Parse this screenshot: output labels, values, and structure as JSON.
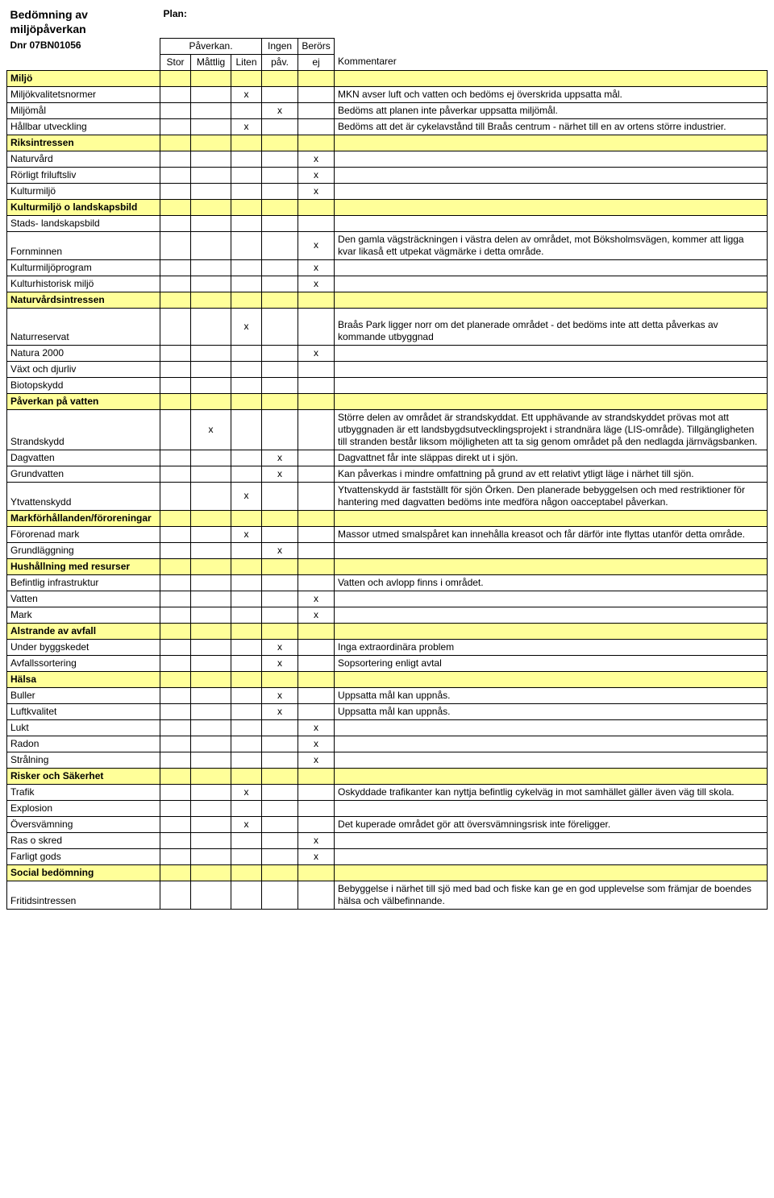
{
  "doc_title": "Bedömning av miljöpåverkan",
  "plan_label": "Plan:",
  "dnr": "Dnr 07BN01056",
  "second_header": {
    "paverkan": "Påverkan.",
    "ingen": "Ingen",
    "berors": "Berörs"
  },
  "headers": {
    "stor": "Stor",
    "mattlig": "Måttlig",
    "liten": "Liten",
    "pav": "påv.",
    "ej": "ej",
    "kommentarer": "Kommentarer"
  },
  "sections": [
    {
      "label": "Miljö",
      "rows": [
        {
          "label": "Miljökvalitetsnormer",
          "marks": [
            "",
            "",
            "x",
            "",
            ""
          ],
          "comment": "MKN avser luft och vatten och bedöms ej överskrida uppsatta mål."
        },
        {
          "label": "Miljömål",
          "marks": [
            "",
            "",
            "",
            "x",
            ""
          ],
          "comment": "Bedöms att planen inte påverkar uppsatta miljömål."
        },
        {
          "label": "Hållbar utveckling",
          "marks": [
            "",
            "",
            "x",
            "",
            ""
          ],
          "comment": "Bedöms att det är cykelavstånd till Braås centrum - närhet till en av ortens större industrier."
        }
      ]
    },
    {
      "label": "Riksintressen",
      "rows": [
        {
          "label": "Naturvård",
          "marks": [
            "",
            "",
            "",
            "",
            "x"
          ],
          "comment": ""
        },
        {
          "label": "Rörligt friluftsliv",
          "marks": [
            "",
            "",
            "",
            "",
            "x"
          ],
          "comment": ""
        },
        {
          "label": "Kulturmiljö",
          "marks": [
            "",
            "",
            "",
            "",
            "x"
          ],
          "comment": ""
        }
      ]
    },
    {
      "label": "Kulturmiljö o landskapsbild",
      "rows": [
        {
          "label": "Stads- landskapsbild",
          "marks": [
            "",
            "",
            "",
            "",
            ""
          ],
          "comment": ""
        },
        {
          "label": "Fornminnen",
          "marks": [
            "",
            "",
            "",
            "",
            "x"
          ],
          "comment": "Den gamla vägsträckningen i västra delen av området, mot Böksholmsvägen, kommer att ligga kvar likaså ett utpekat vägmärke i detta område."
        },
        {
          "label": "Kulturmiljöprogram",
          "marks": [
            "",
            "",
            "",
            "",
            "x"
          ],
          "comment": ""
        },
        {
          "label": "Kulturhistorisk miljö",
          "marks": [
            "",
            "",
            "",
            "",
            "x"
          ],
          "comment": ""
        }
      ]
    },
    {
      "label": "Naturvårdsintressen",
      "rows": [
        {
          "label": "Naturreservat",
          "marks": [
            "",
            "",
            "x",
            "",
            ""
          ],
          "comment": "Braås Park ligger norr om det planerade området - det bedöms inte att detta påverkas av kommande utbyggnad",
          "tall": true
        },
        {
          "label": "Natura 2000",
          "marks": [
            "",
            "",
            "",
            "",
            "x"
          ],
          "comment": ""
        },
        {
          "label": "Växt och djurliv",
          "marks": [
            "",
            "",
            "",
            "",
            ""
          ],
          "comment": ""
        },
        {
          "label": "Biotopskydd",
          "marks": [
            "",
            "",
            "",
            "",
            ""
          ],
          "comment": ""
        }
      ]
    },
    {
      "label": "Påverkan på vatten",
      "rows": [
        {
          "label": "Strandskydd",
          "marks": [
            "",
            "x",
            "",
            "",
            ""
          ],
          "comment": "Större delen av området är strandskyddat.               Ett upphävande av strandskyddet prövas mot att utbyggnaden är ett landsbygdsutvecklingsprojekt i strandnära läge (LIS-område). Tillgängligheten till stranden består liksom möjligheten att ta sig genom området på den nedlagda järnvägsbanken."
        },
        {
          "label": "Dagvatten",
          "marks": [
            "",
            "",
            "",
            "x",
            ""
          ],
          "comment": "Dagvattnet får inte släppas direkt ut i sjön."
        },
        {
          "label": "Grundvatten",
          "marks": [
            "",
            "",
            "",
            "x",
            ""
          ],
          "comment": "Kan påverkas i mindre omfattning på grund av ett relativt ytligt läge i närhet till sjön."
        },
        {
          "label": "Ytvattenskydd",
          "marks": [
            "",
            "",
            "x",
            "",
            ""
          ],
          "comment": "Ytvattenskydd är fastställt för sjön Örken. Den planerade bebyggelsen och med restriktioner för hantering med dagvatten bedöms inte medföra någon oacceptabel påverkan."
        }
      ]
    },
    {
      "label": "Markförhållanden/föroreningar",
      "rows": [
        {
          "label": "Förorenad mark",
          "marks": [
            "",
            "",
            "x",
            "",
            ""
          ],
          "comment": "Massor utmed smalspåret kan innehålla kreasot och får därför inte flyttas utanför detta område."
        },
        {
          "label": "Grundläggning",
          "marks": [
            "",
            "",
            "",
            "x",
            ""
          ],
          "comment": ""
        }
      ]
    },
    {
      "label": "Hushållning med resurser",
      "rows": [
        {
          "label": "Befintlig infrastruktur",
          "marks": [
            "",
            "",
            "",
            "",
            ""
          ],
          "comment": "Vatten och avlopp finns i området."
        },
        {
          "label": "Vatten",
          "marks": [
            "",
            "",
            "",
            "",
            "x"
          ],
          "comment": ""
        },
        {
          "label": "Mark",
          "marks": [
            "",
            "",
            "",
            "",
            "x"
          ],
          "comment": ""
        }
      ]
    },
    {
      "label": "Alstrande av avfall",
      "rows": [
        {
          "label": "Under byggskedet",
          "marks": [
            "",
            "",
            "",
            "x",
            ""
          ],
          "comment": "Inga extraordinära problem"
        },
        {
          "label": "Avfallssortering",
          "marks": [
            "",
            "",
            "",
            "x",
            ""
          ],
          "comment": "Sopsortering enligt avtal"
        }
      ]
    },
    {
      "label": "Hälsa",
      "rows": [
        {
          "label": "Buller",
          "marks": [
            "",
            "",
            "",
            "x",
            ""
          ],
          "comment": "Uppsatta mål kan uppnås."
        },
        {
          "label": "Luftkvalitet",
          "marks": [
            "",
            "",
            "",
            "x",
            ""
          ],
          "comment": "Uppsatta mål kan uppnås."
        },
        {
          "label": "Lukt",
          "marks": [
            "",
            "",
            "",
            "",
            "x"
          ],
          "comment": ""
        },
        {
          "label": "Radon",
          "marks": [
            "",
            "",
            "",
            "",
            "x"
          ],
          "comment": ""
        },
        {
          "label": "Strålning",
          "marks": [
            "",
            "",
            "",
            "",
            "x"
          ],
          "comment": ""
        }
      ]
    },
    {
      "label": "Risker och Säkerhet",
      "rows": [
        {
          "label": "Trafik",
          "marks": [
            "",
            "",
            "x",
            "",
            ""
          ],
          "comment": "Oskyddade trafikanter kan nyttja befintlig cykelväg in mot samhället gäller även väg till skola."
        },
        {
          "label": "Explosion",
          "marks": [
            "",
            "",
            "",
            "",
            ""
          ],
          "comment": ""
        },
        {
          "label": "Översvämning",
          "marks": [
            "",
            "",
            "x",
            "",
            ""
          ],
          "comment": "Det kuperade området gör att översvämningsrisk inte föreligger."
        },
        {
          "label": "Ras o skred",
          "marks": [
            "",
            "",
            "",
            "",
            "x"
          ],
          "comment": ""
        },
        {
          "label": "Farligt gods",
          "marks": [
            "",
            "",
            "",
            "",
            "x"
          ],
          "comment": ""
        }
      ]
    },
    {
      "label": "Social bedömning",
      "rows": [
        {
          "label": "Fritidsintressen",
          "marks": [
            "",
            "",
            "",
            "",
            ""
          ],
          "comment": "Bebyggelse i närhet till sjö med bad och fiske kan ge   en god upplevelse som främjar de boendes hälsa och välbefinnande."
        }
      ]
    }
  ]
}
